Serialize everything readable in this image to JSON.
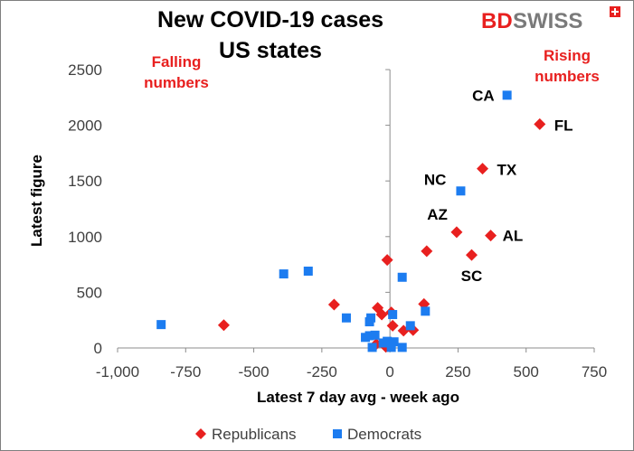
{
  "brand": {
    "logo_left": "BD",
    "logo_right": "SWISS"
  },
  "chart_data": {
    "type": "scatter",
    "title_lines": [
      "New COVID-19 cases",
      "US states"
    ],
    "xlabel": "Latest 7 day avg - week ago",
    "ylabel": "Latest figure",
    "xlim": [
      -1000,
      750
    ],
    "ylim": [
      0,
      2500
    ],
    "x_ticks": [
      -1000,
      -750,
      -500,
      -250,
      0,
      250,
      500,
      750
    ],
    "x_tick_labels": [
      "-1,000",
      "-750",
      "-500",
      "-250",
      "0",
      "250",
      "500",
      "750"
    ],
    "y_ticks": [
      0,
      500,
      1000,
      1500,
      2000,
      2500
    ],
    "y_tick_labels": [
      "0",
      "500",
      "1000",
      "1500",
      "2000",
      "2500"
    ],
    "grid": false,
    "legend_position": "bottom",
    "annotations": [
      {
        "text": [
          "Falling",
          "numbers"
        ],
        "color": "#e8201f",
        "position": "top-left"
      },
      {
        "text": [
          "Rising",
          "numbers"
        ],
        "color": "#e8201f",
        "position": "top-right"
      }
    ],
    "series": [
      {
        "name": "Republicans",
        "marker": "diamond",
        "color": "#e8201f",
        "points": [
          {
            "x": 550,
            "y": 2010,
            "label": "FL"
          },
          {
            "x": 340,
            "y": 1610,
            "label": "TX"
          },
          {
            "x": 370,
            "y": 1010,
            "label": "AL"
          },
          {
            "x": 245,
            "y": 1040,
            "label": "AZ"
          },
          {
            "x": 300,
            "y": 835,
            "label": "SC"
          },
          {
            "x": 135,
            "y": 870
          },
          {
            "x": 125,
            "y": 395
          },
          {
            "x": -10,
            "y": 790
          },
          {
            "x": -610,
            "y": 205
          },
          {
            "x": -205,
            "y": 390
          },
          {
            "x": -45,
            "y": 360
          },
          {
            "x": -30,
            "y": 300
          },
          {
            "x": 5,
            "y": 320
          },
          {
            "x": 10,
            "y": 200
          },
          {
            "x": 50,
            "y": 155
          },
          {
            "x": 85,
            "y": 160
          },
          {
            "x": -50,
            "y": 35
          },
          {
            "x": -15,
            "y": 10
          }
        ]
      },
      {
        "name": "Democrats",
        "marker": "square",
        "color": "#1c7cf0",
        "points": [
          {
            "x": 430,
            "y": 2270,
            "label": "CA"
          },
          {
            "x": 260,
            "y": 1410,
            "label": "NC"
          },
          {
            "x": -840,
            "y": 210
          },
          {
            "x": -390,
            "y": 665
          },
          {
            "x": -300,
            "y": 690
          },
          {
            "x": -160,
            "y": 270
          },
          {
            "x": -90,
            "y": 95
          },
          {
            "x": -75,
            "y": 110
          },
          {
            "x": -70,
            "y": 270
          },
          {
            "x": -75,
            "y": 235
          },
          {
            "x": -65,
            "y": 5
          },
          {
            "x": -55,
            "y": 115
          },
          {
            "x": -25,
            "y": 45
          },
          {
            "x": -10,
            "y": 60
          },
          {
            "x": 5,
            "y": 5
          },
          {
            "x": 10,
            "y": 300
          },
          {
            "x": 15,
            "y": 55
          },
          {
            "x": 45,
            "y": 5
          },
          {
            "x": 45,
            "y": 635
          },
          {
            "x": 75,
            "y": 200
          },
          {
            "x": 130,
            "y": 330
          }
        ]
      }
    ]
  }
}
